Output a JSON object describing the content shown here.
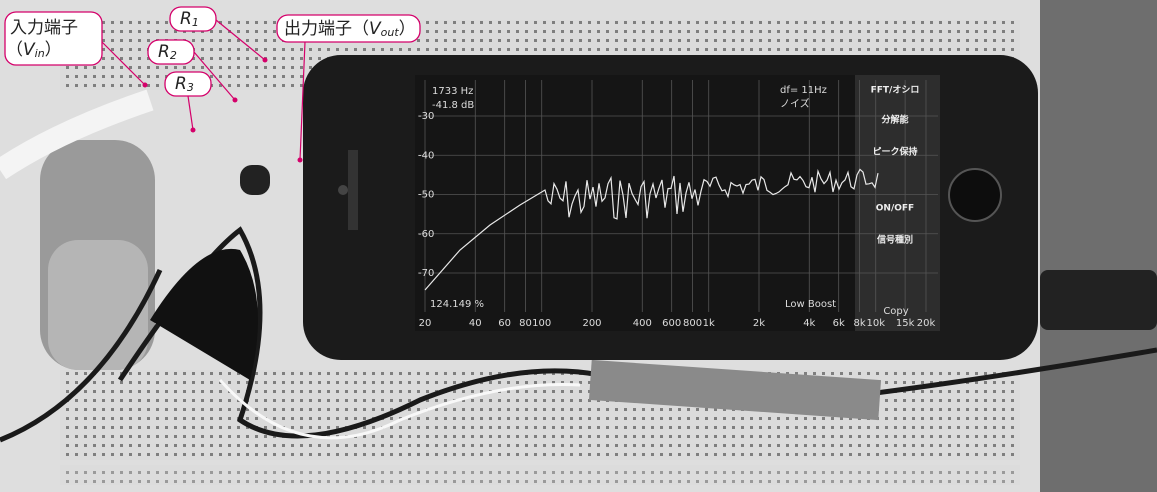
{
  "callouts": [
    {
      "prefix": "入力端子",
      "open": "（",
      "var": "V",
      "sub": "in",
      "close": "）"
    },
    {
      "var": "R",
      "sub": "1"
    },
    {
      "var": "R",
      "sub": "2"
    },
    {
      "var": "R",
      "sub": "3"
    },
    {
      "prefix": "出力端子",
      "open": "（",
      "var": "V",
      "sub": "out",
      "close": "）"
    }
  ],
  "screen": {
    "readout": [
      "1733 Hz",
      "-41.8 dB"
    ],
    "info": [
      "df= 11Hz",
      "ノイズ"
    ],
    "menu": [
      "FFT/オシロ",
      "分解能",
      "ピーク保持",
      "ON/OFF",
      "信号種別"
    ],
    "percent": "124.149 %",
    "mode": "Low Boost",
    "copy": "Copy",
    "yticks": [
      -30,
      -40,
      -50,
      -60,
      -70
    ],
    "xticks": [
      20,
      40,
      60,
      80,
      100,
      200,
      400,
      600,
      800,
      {
        "value": 1000,
        "label": "1k"
      },
      {
        "value": 2000,
        "label": "2k"
      },
      {
        "value": 4000,
        "label": "4k"
      },
      {
        "value": 6000,
        "label": "6k"
      },
      {
        "value": 8000,
        "label": "8k"
      },
      {
        "value": 10000,
        "label": "10k"
      },
      {
        "value": 15000,
        "label": "15k"
      },
      {
        "value": 20000,
        "label": "20k"
      }
    ]
  }
}
